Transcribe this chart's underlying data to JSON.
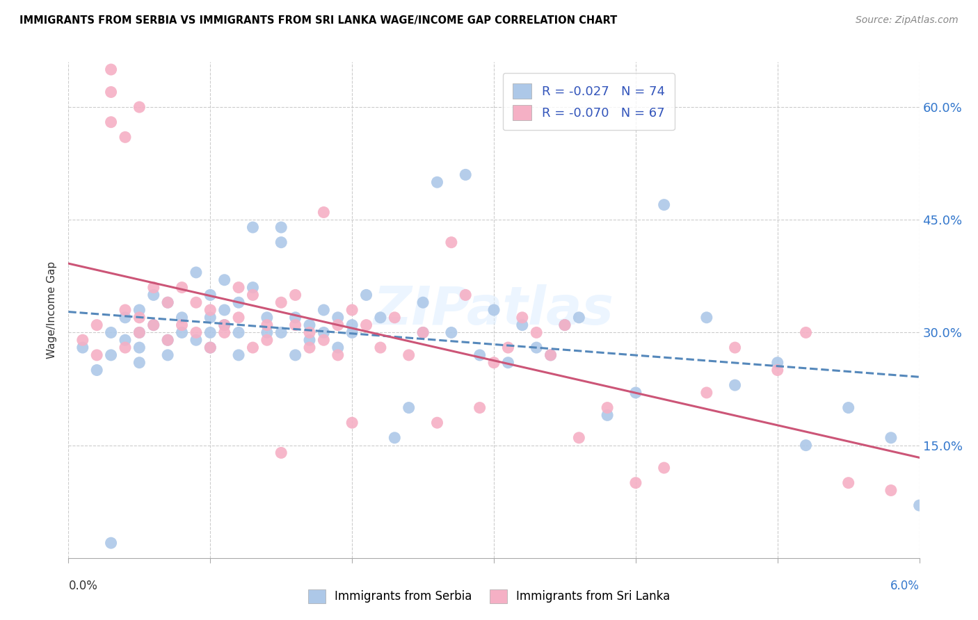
{
  "title": "IMMIGRANTS FROM SERBIA VS IMMIGRANTS FROM SRI LANKA WAGE/INCOME GAP CORRELATION CHART",
  "source": "Source: ZipAtlas.com",
  "ylabel": "Wage/Income Gap",
  "ytick_labels": [
    "15.0%",
    "30.0%",
    "45.0%",
    "60.0%"
  ],
  "ytick_values": [
    0.15,
    0.3,
    0.45,
    0.6
  ],
  "xtick_positions": [
    0.0,
    0.01,
    0.02,
    0.03,
    0.04,
    0.05,
    0.06
  ],
  "xlim": [
    0.0,
    0.06
  ],
  "ylim": [
    0.0,
    0.66
  ],
  "legend_label1": "Immigrants from Serbia",
  "legend_label2": "Immigrants from Sri Lanka",
  "serbia_color": "#adc8e8",
  "srilanka_color": "#f5b0c5",
  "serbia_line_color": "#5588bb",
  "srilanka_line_color": "#cc5577",
  "watermark": "ZIPatlas",
  "serbia_R": -0.027,
  "serbia_N": 74,
  "srilanka_R": -0.07,
  "srilanka_N": 67,
  "serbia_x": [
    0.001,
    0.002,
    0.003,
    0.003,
    0.004,
    0.004,
    0.005,
    0.005,
    0.005,
    0.005,
    0.006,
    0.006,
    0.007,
    0.007,
    0.007,
    0.008,
    0.008,
    0.009,
    0.009,
    0.01,
    0.01,
    0.01,
    0.01,
    0.011,
    0.011,
    0.011,
    0.012,
    0.012,
    0.012,
    0.013,
    0.013,
    0.014,
    0.014,
    0.015,
    0.015,
    0.015,
    0.016,
    0.016,
    0.017,
    0.017,
    0.018,
    0.018,
    0.019,
    0.019,
    0.02,
    0.02,
    0.021,
    0.022,
    0.023,
    0.024,
    0.025,
    0.025,
    0.026,
    0.027,
    0.028,
    0.029,
    0.03,
    0.031,
    0.032,
    0.033,
    0.034,
    0.035,
    0.036,
    0.038,
    0.04,
    0.042,
    0.045,
    0.047,
    0.05,
    0.052,
    0.055,
    0.058,
    0.003,
    0.06
  ],
  "serbia_y": [
    0.28,
    0.25,
    0.27,
    0.3,
    0.29,
    0.32,
    0.3,
    0.33,
    0.28,
    0.26,
    0.31,
    0.35,
    0.27,
    0.29,
    0.34,
    0.3,
    0.32,
    0.38,
    0.29,
    0.35,
    0.32,
    0.3,
    0.28,
    0.37,
    0.33,
    0.31,
    0.34,
    0.27,
    0.3,
    0.44,
    0.36,
    0.32,
    0.3,
    0.44,
    0.42,
    0.3,
    0.32,
    0.27,
    0.31,
    0.29,
    0.33,
    0.3,
    0.28,
    0.32,
    0.31,
    0.3,
    0.35,
    0.32,
    0.16,
    0.2,
    0.34,
    0.3,
    0.5,
    0.3,
    0.51,
    0.27,
    0.33,
    0.26,
    0.31,
    0.28,
    0.27,
    0.31,
    0.32,
    0.19,
    0.22,
    0.47,
    0.32,
    0.23,
    0.26,
    0.15,
    0.2,
    0.16,
    0.02,
    0.07
  ],
  "srilanka_x": [
    0.001,
    0.002,
    0.002,
    0.003,
    0.003,
    0.004,
    0.004,
    0.004,
    0.005,
    0.005,
    0.006,
    0.006,
    0.007,
    0.007,
    0.008,
    0.008,
    0.009,
    0.009,
    0.01,
    0.01,
    0.011,
    0.011,
    0.012,
    0.012,
    0.013,
    0.013,
    0.014,
    0.014,
    0.015,
    0.015,
    0.016,
    0.016,
    0.017,
    0.017,
    0.018,
    0.018,
    0.019,
    0.019,
    0.02,
    0.02,
    0.021,
    0.022,
    0.023,
    0.024,
    0.025,
    0.026,
    0.027,
    0.028,
    0.029,
    0.03,
    0.031,
    0.032,
    0.033,
    0.034,
    0.035,
    0.036,
    0.038,
    0.04,
    0.042,
    0.045,
    0.047,
    0.05,
    0.052,
    0.055,
    0.003,
    0.005,
    0.058
  ],
  "srilanka_y": [
    0.29,
    0.31,
    0.27,
    0.62,
    0.58,
    0.56,
    0.33,
    0.28,
    0.3,
    0.32,
    0.31,
    0.36,
    0.29,
    0.34,
    0.36,
    0.31,
    0.3,
    0.34,
    0.33,
    0.28,
    0.31,
    0.3,
    0.36,
    0.32,
    0.35,
    0.28,
    0.31,
    0.29,
    0.34,
    0.14,
    0.31,
    0.35,
    0.3,
    0.28,
    0.46,
    0.29,
    0.31,
    0.27,
    0.33,
    0.18,
    0.31,
    0.28,
    0.32,
    0.27,
    0.3,
    0.18,
    0.42,
    0.35,
    0.2,
    0.26,
    0.28,
    0.32,
    0.3,
    0.27,
    0.31,
    0.16,
    0.2,
    0.1,
    0.12,
    0.22,
    0.28,
    0.25,
    0.3,
    0.1,
    0.65,
    0.6,
    0.09
  ]
}
